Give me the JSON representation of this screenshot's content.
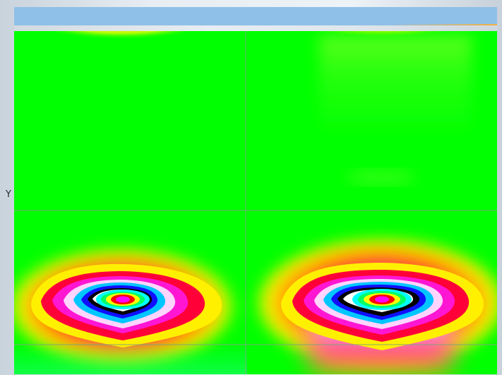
{
  "chart_data": {
    "type": "heatmap",
    "title": "",
    "xlabel": "",
    "ylabel": "Y",
    "grid": true,
    "panels": [
      {
        "name": "top-left",
        "base_color": "#00ff00",
        "features": [
          {
            "kind": "hotspot",
            "peak_color": "#ff7f00",
            "ring_colors": [
              "#ffb000",
              "#ffe400",
              "#c4ff00"
            ]
          }
        ]
      },
      {
        "name": "top-right",
        "base_color": "#00ff00",
        "features": [
          {
            "kind": "hotspot",
            "peak_color": "#ff1f00",
            "ring_colors": [
              "#ff7a00",
              "#ffd200",
              "#b7ff00"
            ]
          },
          {
            "kind": "faint-plume",
            "color": "#7dff3a"
          }
        ]
      },
      {
        "name": "bottom-left",
        "base_color": "#00ff00",
        "features": [
          {
            "kind": "contour-bowl",
            "ring_colors": [
              "#ffee00",
              "#ff0000",
              "#ff00cc",
              "#ffccff",
              "#00c8ff",
              "#0000ff",
              "#000000",
              "#ffffff",
              "#00ffff",
              "#00ff66",
              "#ffff00",
              "#ff0000",
              "#ff00ff"
            ]
          },
          {
            "kind": "bottom-tint",
            "color": "#23ff9a"
          }
        ]
      },
      {
        "name": "bottom-right",
        "base_color": "#00ff00",
        "features": [
          {
            "kind": "contour-bowl",
            "ring_colors": [
              "#ffee00",
              "#ff0000",
              "#ff00cc",
              "#ffccff",
              "#00c8ff",
              "#0000ff",
              "#000000",
              "#ffffff",
              "#00ffff",
              "#00ff66",
              "#ffff00",
              "#ff0000",
              "#ff00ff"
            ]
          },
          {
            "kind": "vertical-plume",
            "colors": [
              "#ffffff",
              "#ffd7ff",
              "#ff6bd0",
              "#ff0050",
              "#ff7a00",
              "#ffe600"
            ]
          }
        ]
      }
    ]
  }
}
